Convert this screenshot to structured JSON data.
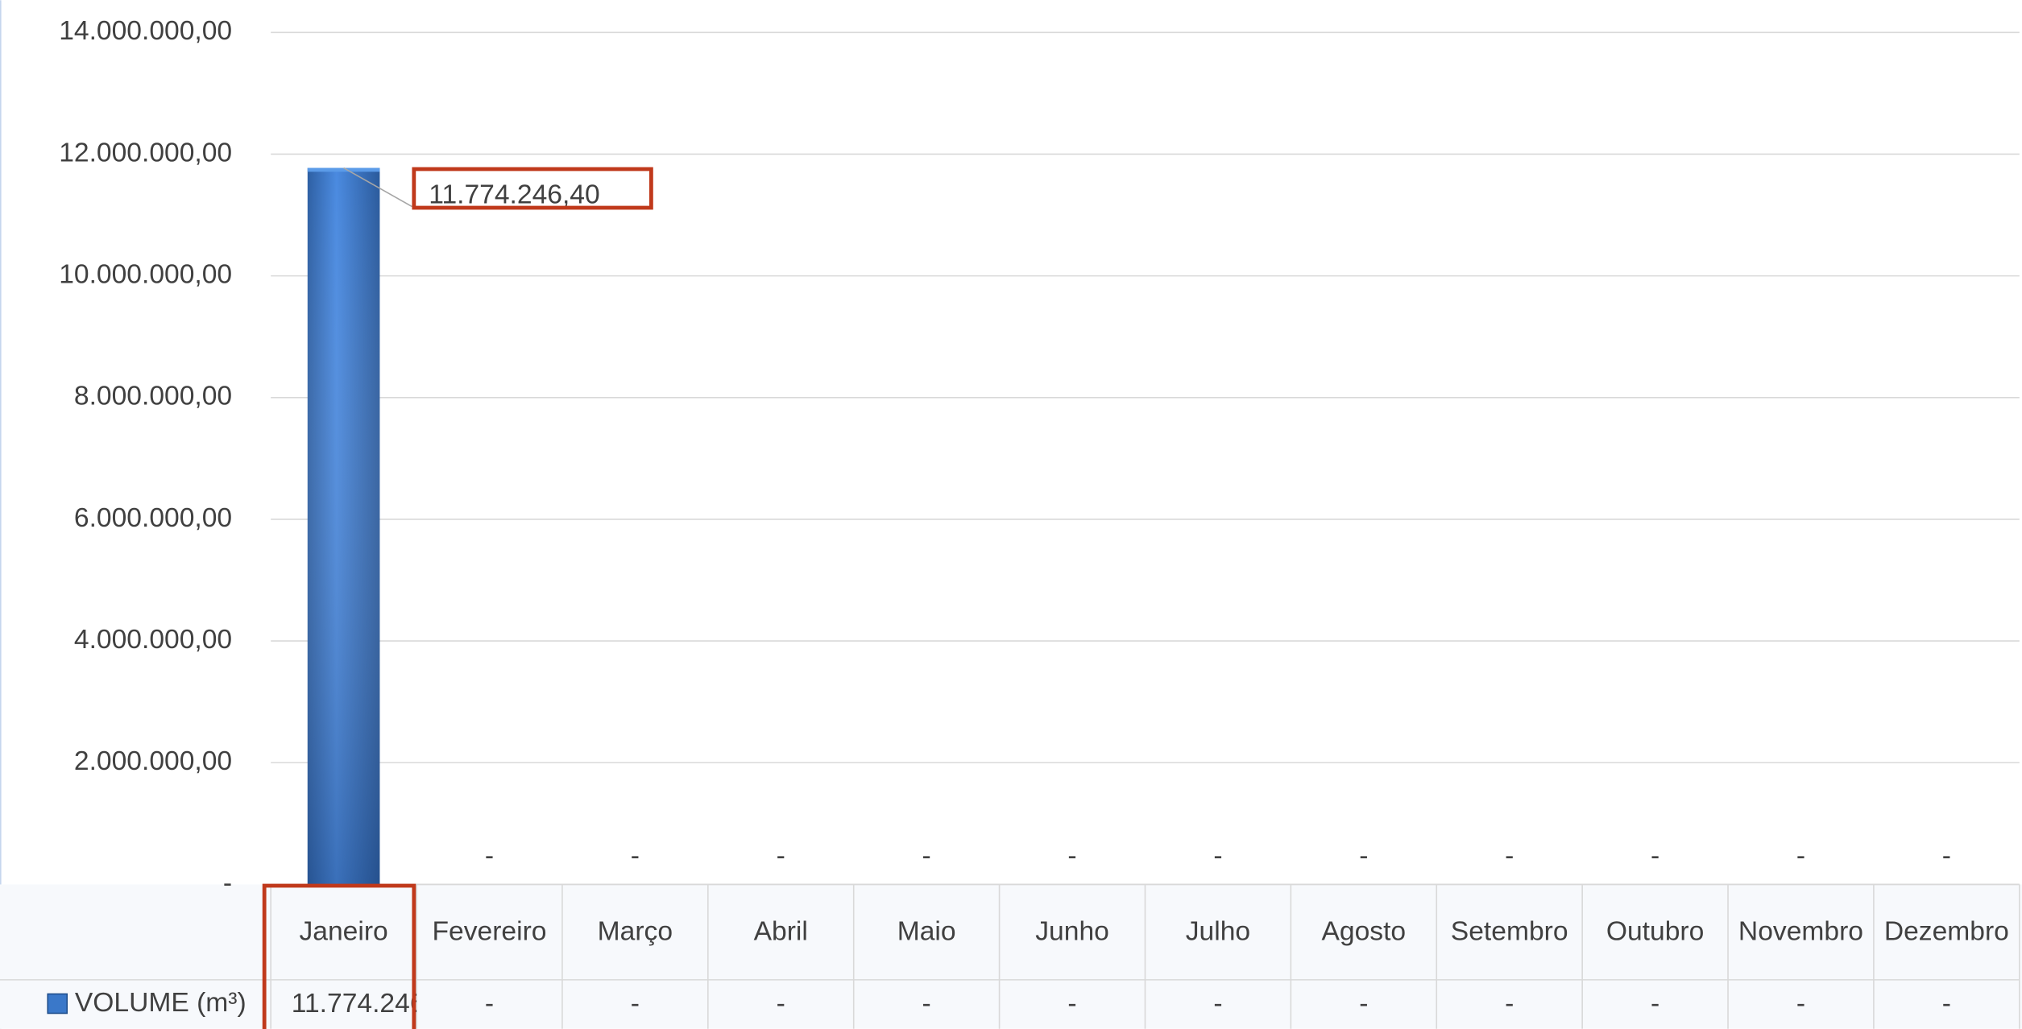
{
  "chart_data": {
    "type": "bar",
    "categories": [
      "Janeiro",
      "Fevereiro",
      "Março",
      "Abril",
      "Maio",
      "Junho",
      "Julho",
      "Agosto",
      "Setembro",
      "Outubro",
      "Novembro",
      "Dezembro"
    ],
    "series": [
      {
        "name": "VOLUME (m³)",
        "color": "#3a78c9",
        "values": [
          11774246.4,
          0,
          0,
          0,
          0,
          0,
          0,
          0,
          0,
          0,
          0,
          0
        ],
        "value_labels": [
          "11.774.246,40",
          "-",
          "-",
          "-",
          "-",
          "-",
          "-",
          "-",
          "-",
          "-",
          "-",
          "-"
        ]
      }
    ],
    "ylim": [
      0,
      14000000
    ],
    "yticks": [
      {
        "value": 0,
        "label": "-"
      },
      {
        "value": 2000000,
        "label": "2.000.000,00"
      },
      {
        "value": 4000000,
        "label": "4.000.000,00"
      },
      {
        "value": 6000000,
        "label": "6.000.000,00"
      },
      {
        "value": 8000000,
        "label": "8.000.000,00"
      },
      {
        "value": 10000000,
        "label": "10.000.000,00"
      },
      {
        "value": 12000000,
        "label": "12.000.000,00"
      },
      {
        "value": 14000000,
        "label": "14.000.000,00"
      }
    ],
    "grid": true
  }
}
